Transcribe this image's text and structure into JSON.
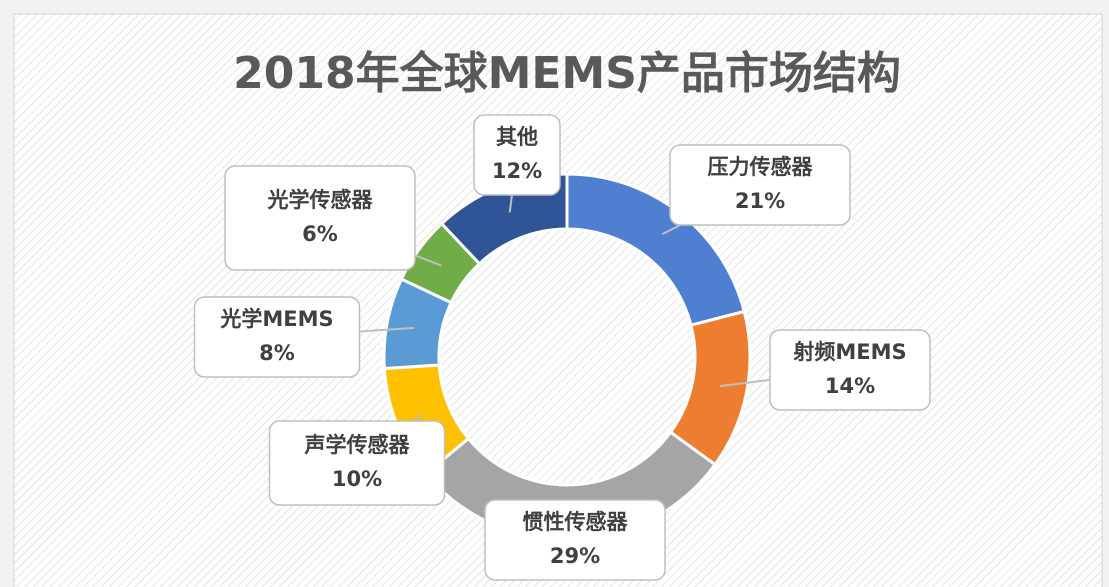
{
  "chart_data": {
    "type": "donut",
    "title": "2018年全球MEMS产品市场结构",
    "categories": [
      "压力传感器",
      "射频MEMS",
      "惯性传感器",
      "声学传感器",
      "光学MEMS",
      "光学传感器",
      "其他"
    ],
    "values": [
      21,
      14,
      29,
      10,
      8,
      6,
      12
    ],
    "value_labels": [
      "21%",
      "14%",
      "29%",
      "10%",
      "8%",
      "6%",
      "12%"
    ],
    "colors": [
      "#4f7fd0",
      "#ed7d31",
      "#a5a5a5",
      "#ffc000",
      "#5b9bd5",
      "#70ad47",
      "#2f5597"
    ]
  }
}
